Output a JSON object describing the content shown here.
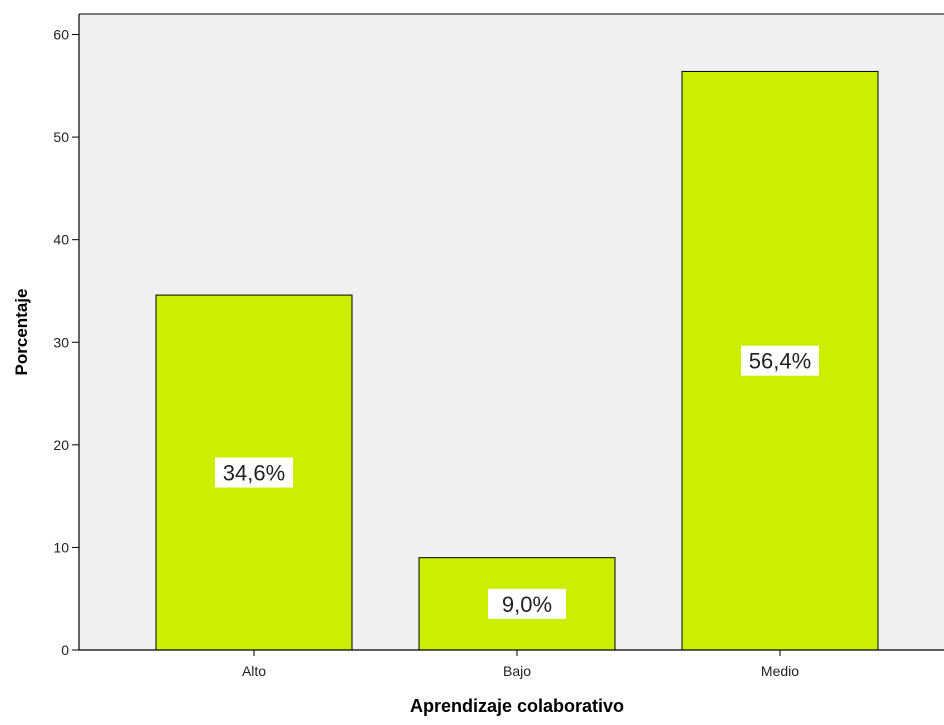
{
  "chart_data": {
    "type": "bar",
    "title": "",
    "xlabel": "Aprendizaje colaborativo",
    "ylabel": "Porcentaje",
    "categories": [
      "Alto",
      "Bajo",
      "Medio"
    ],
    "values": [
      34.6,
      9.0,
      56.4
    ],
    "data_labels": [
      "34,6%",
      "9,0%",
      "56,4%"
    ],
    "ylim": [
      0,
      62
    ],
    "yticks": [
      0,
      10,
      20,
      30,
      40,
      50,
      60
    ],
    "ytick_labels": [
      "0",
      "10",
      "20",
      "30",
      "40",
      "50",
      "60"
    ],
    "grid": false,
    "legend": "none",
    "colors": {
      "bar_fill": "#ccee00",
      "bar_stroke": "#000000",
      "plot_background": "#f0f0f0",
      "page_background": "#ffffff",
      "axis": "#000000",
      "label_box": "#ffffff"
    }
  }
}
